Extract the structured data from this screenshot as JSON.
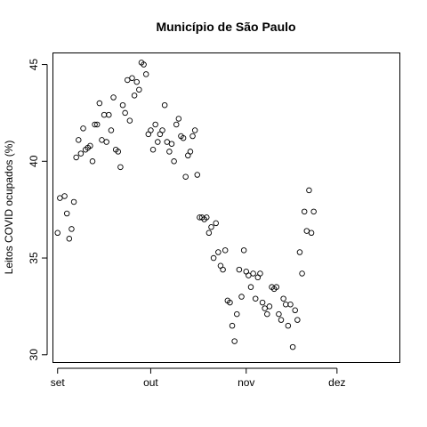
{
  "chart_data": {
    "type": "scatter",
    "title": "Município de São Paulo",
    "xlabel": "",
    "ylabel": "Leitos COVID ocupados (%)",
    "xlim": [
      -2,
      147
    ],
    "ylim": [
      29.6,
      45.6
    ],
    "x_ticks": [
      {
        "label": "set",
        "value": 0
      },
      {
        "label": "out",
        "value": 40
      },
      {
        "label": "nov",
        "value": 81
      },
      {
        "label": "dez",
        "value": 120
      }
    ],
    "y_ticks": [
      30,
      35,
      40,
      45
    ],
    "grid": false,
    "legend": "none",
    "points": [
      [
        0,
        36.3
      ],
      [
        1,
        38.1
      ],
      [
        3,
        38.2
      ],
      [
        4,
        37.3
      ],
      [
        5,
        36.0
      ],
      [
        6,
        36.5
      ],
      [
        7,
        37.9
      ],
      [
        8,
        40.2
      ],
      [
        9,
        41.1
      ],
      [
        10,
        40.4
      ],
      [
        11,
        41.7
      ],
      [
        12,
        40.6
      ],
      [
        13,
        40.7
      ],
      [
        14,
        40.8
      ],
      [
        15,
        40.0
      ],
      [
        16,
        41.9
      ],
      [
        17,
        41.9
      ],
      [
        18,
        43.0
      ],
      [
        19,
        41.1
      ],
      [
        20,
        42.4
      ],
      [
        21,
        41.0
      ],
      [
        22,
        42.4
      ],
      [
        23,
        41.6
      ],
      [
        24,
        43.3
      ],
      [
        25,
        40.6
      ],
      [
        26,
        40.5
      ],
      [
        27,
        39.7
      ],
      [
        28,
        42.9
      ],
      [
        29,
        42.5
      ],
      [
        30,
        44.2
      ],
      [
        31,
        42.1
      ],
      [
        32,
        44.3
      ],
      [
        33,
        43.4
      ],
      [
        34,
        44.1
      ],
      [
        35,
        43.7
      ],
      [
        36,
        45.1
      ],
      [
        37,
        45.0
      ],
      [
        38,
        44.5
      ],
      [
        39,
        41.4
      ],
      [
        40,
        41.6
      ],
      [
        41,
        40.6
      ],
      [
        42,
        41.9
      ],
      [
        43,
        41.0
      ],
      [
        44,
        41.4
      ],
      [
        45,
        41.6
      ],
      [
        46,
        42.9
      ],
      [
        47,
        41.0
      ],
      [
        48,
        40.5
      ],
      [
        49,
        40.9
      ],
      [
        50,
        40.0
      ],
      [
        51,
        41.9
      ],
      [
        52,
        42.2
      ],
      [
        53,
        41.3
      ],
      [
        54,
        41.2
      ],
      [
        55,
        39.2
      ],
      [
        56,
        40.3
      ],
      [
        57,
        40.5
      ],
      [
        58,
        41.3
      ],
      [
        59,
        41.6
      ],
      [
        60,
        39.3
      ],
      [
        61,
        37.1
      ],
      [
        62,
        37.1
      ],
      [
        63,
        37.0
      ],
      [
        64,
        37.1
      ],
      [
        65,
        36.3
      ],
      [
        66,
        36.6
      ],
      [
        67,
        35.0
      ],
      [
        68,
        36.8
      ],
      [
        69,
        35.3
      ],
      [
        70,
        34.6
      ],
      [
        71,
        34.4
      ],
      [
        72,
        35.4
      ],
      [
        73,
        32.8
      ],
      [
        74,
        32.7
      ],
      [
        75,
        31.5
      ],
      [
        76,
        30.7
      ],
      [
        77,
        32.1
      ],
      [
        78,
        34.4
      ],
      [
        79,
        33.0
      ],
      [
        80,
        35.4
      ],
      [
        81,
        34.3
      ],
      [
        82,
        34.1
      ],
      [
        83,
        33.5
      ],
      [
        84,
        34.2
      ],
      [
        85,
        32.9
      ],
      [
        86,
        34.0
      ],
      [
        87,
        34.2
      ],
      [
        88,
        32.7
      ],
      [
        89,
        32.4
      ],
      [
        90,
        32.1
      ],
      [
        91,
        32.5
      ],
      [
        92,
        33.5
      ],
      [
        93,
        33.4
      ],
      [
        94,
        33.5
      ],
      [
        95,
        32.1
      ],
      [
        96,
        31.8
      ],
      [
        97,
        32.9
      ],
      [
        98,
        32.6
      ],
      [
        99,
        31.5
      ],
      [
        100,
        32.6
      ],
      [
        101,
        30.4
      ],
      [
        102,
        32.3
      ],
      [
        103,
        31.8
      ],
      [
        104,
        35.3
      ],
      [
        105,
        34.2
      ],
      [
        106,
        37.4
      ],
      [
        107,
        36.4
      ],
      [
        108,
        38.5
      ],
      [
        109,
        36.3
      ],
      [
        110,
        37.4
      ]
    ]
  }
}
